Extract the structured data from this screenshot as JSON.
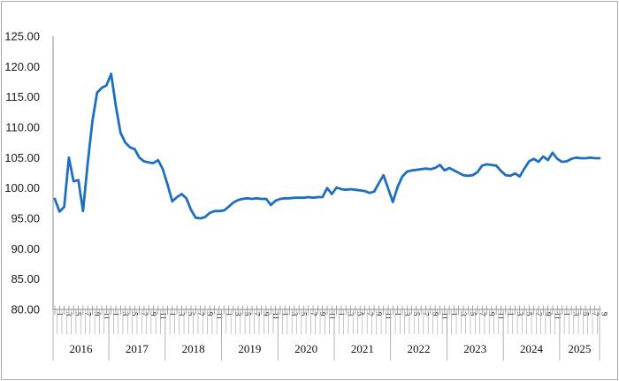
{
  "chart_data": {
    "type": "line",
    "title": "",
    "legend": "none",
    "grid": "off",
    "line_color": "#1e6fc0",
    "y_axis": {
      "min": 80,
      "max": 125,
      "step": 5,
      "tick_labels": [
        "125.00",
        "120.00",
        "115.00",
        "110.00",
        "105.00",
        "100.00",
        "95.00",
        "90.00",
        "85.00",
        "80.00"
      ]
    },
    "x_axis": {
      "unit": "month",
      "month_labels_shown": [
        "1",
        "3",
        "5",
        "7",
        "9",
        "11"
      ],
      "years": [
        "2016",
        "2017",
        "2018",
        "2019",
        "2020",
        "2021",
        "2022",
        "2023",
        "2024",
        "2025"
      ]
    },
    "series": [
      {
        "name": "index",
        "data": [
          {
            "year": "2016",
            "values": [
              98.2,
              96.1,
              96.9,
              105.0,
              101.1,
              101.3,
              96.2,
              104.1,
              111.0,
              115.7,
              116.5,
              116.9
            ]
          },
          {
            "year": "2017",
            "values": [
              118.8,
              113.5,
              109.1,
              107.5,
              106.7,
              106.4,
              105.0,
              104.4,
              104.2,
              104.1,
              104.6,
              103.1
            ]
          },
          {
            "year": "2018",
            "values": [
              100.6,
              97.8,
              98.5,
              99.0,
              98.3,
              96.4,
              95.1,
              95.0,
              95.2,
              95.9,
              96.2,
              96.2
            ]
          },
          {
            "year": "2019",
            "values": [
              96.3,
              96.9,
              97.6,
              98.0,
              98.2,
              98.3,
              98.2,
              98.3,
              98.2,
              98.2,
              97.2,
              97.9
            ]
          },
          {
            "year": "2020",
            "values": [
              98.2,
              98.3,
              98.3,
              98.4,
              98.4,
              98.4,
              98.5,
              98.4,
              98.5,
              98.5,
              100.0,
              99.0
            ]
          },
          {
            "year": "2021",
            "values": [
              100.1,
              99.8,
              99.7,
              99.8,
              99.7,
              99.6,
              99.5,
              99.2,
              99.4,
              100.8,
              102.1,
              99.9
            ]
          },
          {
            "year": "2022",
            "values": [
              97.7,
              100.2,
              101.9,
              102.7,
              102.9,
              103.0,
              103.1,
              103.2,
              103.1,
              103.3,
              103.8,
              102.9
            ]
          },
          {
            "year": "2023",
            "values": [
              103.3,
              102.9,
              102.5,
              102.1,
              102.0,
              102.1,
              102.6,
              103.7,
              103.9,
              103.8,
              103.7,
              102.8
            ]
          },
          {
            "year": "2024",
            "values": [
              102.1,
              102.0,
              102.4,
              101.9,
              103.2,
              104.4,
              104.8,
              104.3,
              105.2,
              104.6,
              105.8,
              104.8
            ]
          },
          {
            "year": "2025",
            "values": [
              104.3,
              104.4,
              104.8,
              105.0,
              104.9,
              104.9,
              105.0,
              104.9,
              104.9
            ]
          }
        ]
      }
    ]
  },
  "styles": {
    "background": "#ffffff",
    "outer_border_color": "#ababab",
    "axis_line_color": "#8c8c8c",
    "tick_color": "#8c8c8c",
    "divider_color": "#a0a0a0",
    "label_color": "#111111"
  }
}
